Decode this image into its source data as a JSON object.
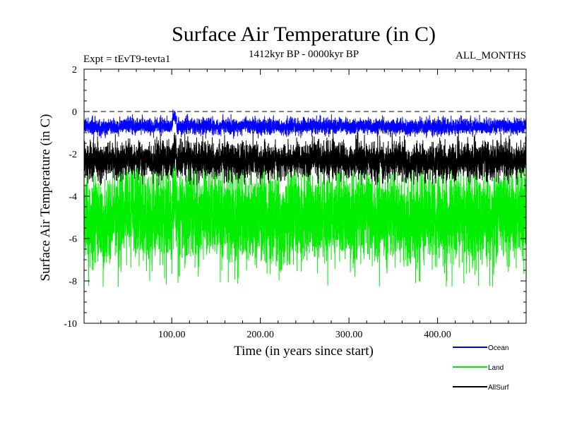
{
  "chart_data": {
    "type": "line",
    "title": "Surface Air Temperature (in C)",
    "subtitle_left": "Expt = tEvT9-tevta1",
    "subtitle_center": "1412kyr BP - 0000kyr BP",
    "subtitle_right": "ALL_MONTHS",
    "xlabel": "Time (in years since start)",
    "ylabel": "Surface Air Temperature (in C)",
    "xlim": [
      1,
      500
    ],
    "ylim": [
      -10,
      2
    ],
    "x_ticks": [
      100,
      200,
      300,
      400
    ],
    "x_tick_labels": [
      "100.00",
      "200.00",
      "300.00",
      "400.00"
    ],
    "y_ticks": [
      -10,
      -8,
      -6,
      -4,
      -2,
      0,
      2
    ],
    "y_tick_labels": [
      "-10",
      "-8",
      "-6",
      "-4",
      "-2",
      "0",
      "2"
    ],
    "reference_line": {
      "y": 0,
      "style": "dashed"
    },
    "series": [
      {
        "name": "Ocean",
        "color": "#0000ff",
        "mean": -0.7,
        "noise": 0.18,
        "min": -1.4,
        "max": 0.2
      },
      {
        "name": "Land",
        "color": "#00ee00",
        "mean": -5.0,
        "noise": 1.05,
        "min": -8.3,
        "max": -2.1
      },
      {
        "name": "AllSurf",
        "color": "#000000",
        "mean": -2.3,
        "noise": 0.42,
        "min": -3.5,
        "max": -0.9
      }
    ],
    "features": [
      {
        "x_range": [
          100,
          106
        ],
        "description": "warm excursion",
        "offsets": {
          "Ocean": 0.6,
          "Land": 1.1,
          "AllSurf": 0.6
        }
      }
    ]
  }
}
